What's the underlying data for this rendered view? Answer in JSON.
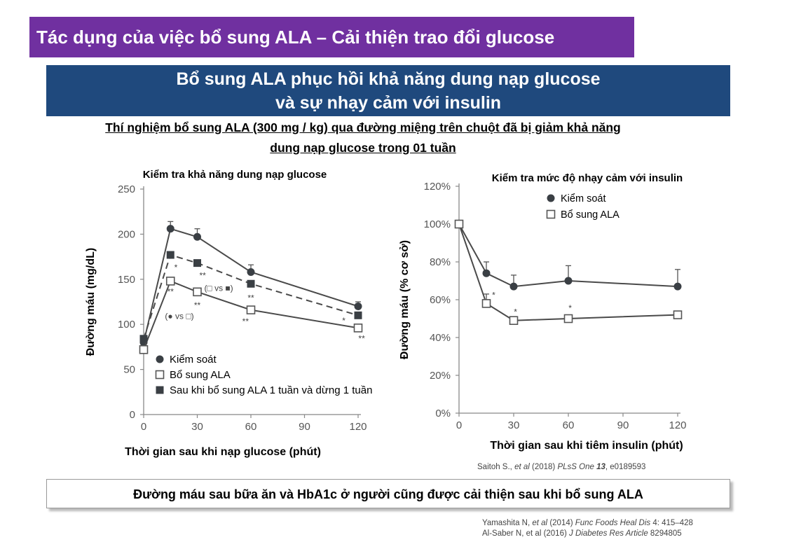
{
  "header": {
    "title": "Tác dụng của việc bổ sung ALA – Cải thiện trao đổi glucose",
    "subtitle_line1": "Bổ sung ALA phục hồi khả năng dung nạp glucose",
    "subtitle_line2": "và sự nhạy cảm với insulin",
    "experiment_line1": "Thí nghiệm bổ sung ALA (300 mg / kg) qua đường miệng trên chuột đã bị giảm khả năng",
    "experiment_line2": "dung nạp glucose trong 01 tuần"
  },
  "colors": {
    "title_bg": "#7030a0",
    "subtitle_bg": "#1f497d",
    "marker_dark": "#3a3f44",
    "axis": "#888888"
  },
  "chart_data": [
    {
      "type": "line",
      "title": "Kiểm tra khả năng dung nạp glucose",
      "xlabel": "Thời gian sau khi nạp glucose (phút)",
      "ylabel": "Đường máu (mg/dL)",
      "xlim": [
        0,
        120
      ],
      "ylim": [
        0,
        250
      ],
      "x_ticks": [
        0,
        30,
        60,
        90,
        120
      ],
      "y_ticks": [
        0,
        50,
        100,
        150,
        200,
        250
      ],
      "x_tick_labels": [
        "0",
        "30",
        "60",
        "90",
        "120"
      ],
      "y_tick_labels": [
        "0",
        "50",
        "100",
        "150",
        "200",
        "250"
      ],
      "x": [
        0,
        15,
        30,
        60,
        120
      ],
      "series": [
        {
          "name": "Kiểm soát",
          "marker": "filled-circle",
          "line": "solid",
          "values": [
            80,
            206,
            197,
            158,
            120
          ],
          "err": [
            0,
            8,
            9,
            8,
            5
          ]
        },
        {
          "name": "Bổ sung ALA",
          "marker": "open-square",
          "line": "solid",
          "values": [
            72,
            148,
            136,
            116,
            96
          ],
          "err": [
            0,
            0,
            0,
            0,
            0
          ]
        },
        {
          "name": "Sau khi bổ sung ALA 1 tuần và dừng 1 tuần",
          "marker": "filled-square",
          "line": "dashed",
          "values": [
            84,
            177,
            168,
            145,
            110
          ],
          "err": [
            0,
            0,
            0,
            0,
            0
          ]
        }
      ],
      "annotations": [
        {
          "text": "*",
          "x": 18,
          "y": 160
        },
        {
          "text": "**",
          "x": 15,
          "y": 133
        },
        {
          "text": "**",
          "x": 33,
          "y": 151
        },
        {
          "text": "**",
          "x": 30,
          "y": 118
        },
        {
          "text": "**",
          "x": 60,
          "y": 126
        },
        {
          "text": "**",
          "x": 57,
          "y": 100
        },
        {
          "text": "*",
          "x": 112,
          "y": 101
        },
        {
          "text": "**",
          "x": 122,
          "y": 81
        },
        {
          "text": "(□ vs ■)",
          "x": 42,
          "y": 137
        },
        {
          "text": "(● vs □)",
          "x": 20,
          "y": 106
        }
      ],
      "legend": [
        {
          "marker": "filled-circle",
          "label": "Kiểm soát"
        },
        {
          "marker": "open-square",
          "label": "Bổ sung ALA"
        },
        {
          "marker": "filled-square",
          "label": "Sau khi bổ sung ALA 1 tuần và dừng 1 tuần"
        }
      ],
      "legend_position": "bottom-left"
    },
    {
      "type": "line",
      "title": "Kiểm tra mức độ nhạy cảm với insulin",
      "xlabel": "Thời gian sau khi tiêm insulin (phút)",
      "ylabel": "Đường máu (% cơ sở)",
      "xlim": [
        0,
        120
      ],
      "ylim": [
        0,
        120
      ],
      "x_ticks": [
        0,
        30,
        60,
        90,
        120
      ],
      "y_ticks": [
        0,
        20,
        40,
        60,
        80,
        100,
        120
      ],
      "x_tick_labels": [
        "0",
        "30",
        "60",
        "90",
        "120"
      ],
      "y_tick_labels": [
        "0%",
        "20%",
        "40%",
        "60%",
        "80%",
        "100%",
        "120%"
      ],
      "x": [
        0,
        15,
        30,
        60,
        120
      ],
      "series": [
        {
          "name": "Kiểm soát",
          "marker": "filled-circle",
          "line": "solid",
          "values": [
            100,
            74,
            67,
            70,
            67
          ],
          "err": [
            0,
            6,
            6,
            8,
            9
          ]
        },
        {
          "name": "Bổ sung ALA",
          "marker": "open-square",
          "line": "solid",
          "values": [
            100,
            58,
            49,
            50,
            52
          ],
          "err": [
            0,
            5,
            2,
            0,
            0
          ]
        }
      ],
      "annotations": [
        {
          "text": "*",
          "x": 19,
          "y": 61
        },
        {
          "text": "*",
          "x": 31,
          "y": 52
        },
        {
          "text": "*",
          "x": 61,
          "y": 54
        }
      ],
      "legend": [
        {
          "marker": "filled-circle",
          "label": "Kiểm soát"
        },
        {
          "marker": "open-square",
          "label": "Bổ sung ALA"
        }
      ],
      "legend_position": "top-right"
    }
  ],
  "citations": {
    "chart2": {
      "prefix": "Saitoh S., ",
      "etal": "et al",
      "year": " (2018) ",
      "journal": "PLsS One ",
      "vol": "13",
      "rest": ", e0189593"
    },
    "ref1": {
      "prefix": "Yamashita N, ",
      "etal": "et al",
      "year": " (2014) ",
      "journal": "Func Foods Heal Dis",
      "rest": " 4: 415–428"
    },
    "ref2": {
      "prefix": "Al-Saber N, et al (2016) ",
      "journal": "J Diabetes Res Article",
      "rest": " 8294805"
    }
  },
  "footer": {
    "note": "Đường máu sau bữa ăn và HbA1c ở người cũng được cải thiện sau khi bổ sung ALA"
  }
}
